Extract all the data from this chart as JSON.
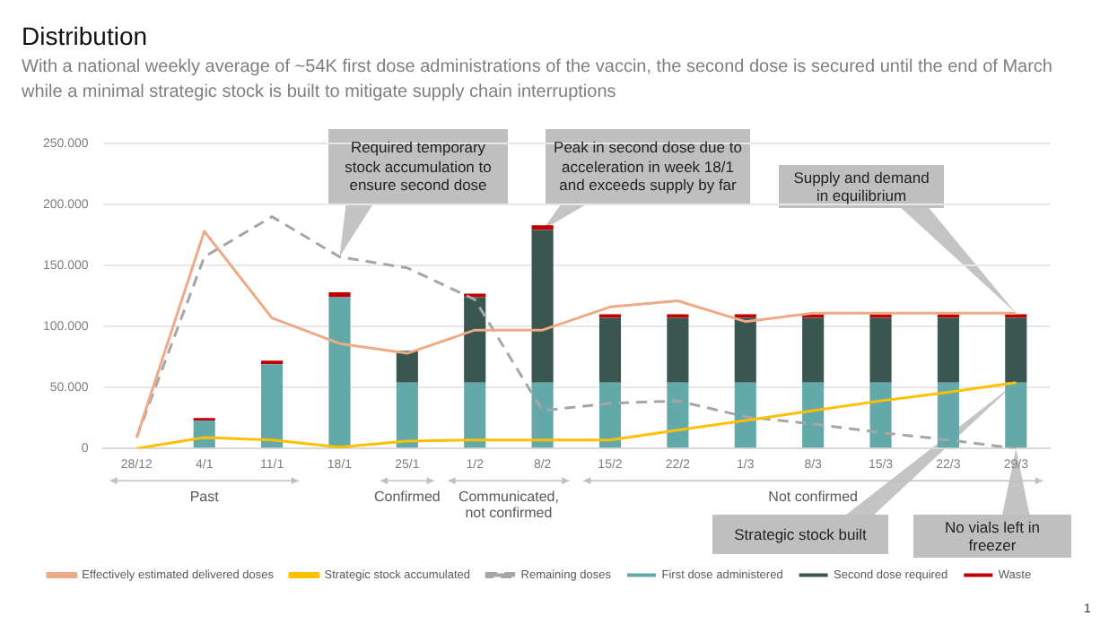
{
  "chart_data": {
    "type": "bar",
    "stacked": true,
    "title": "Distribution",
    "subtitle": "With a national weekly average of ~54K first dose administrations of the vaccin, the second dose is secured until the end of March while a minimal strategic stock is built to mitigate supply chain interruptions",
    "categories": [
      "28/12",
      "4/1",
      "11/1",
      "18/1",
      "25/1",
      "1/2",
      "8/2",
      "15/2",
      "22/2",
      "1/3",
      "8/3",
      "15/3",
      "22/3",
      "29/3"
    ],
    "ylim": [
      0,
      250000
    ],
    "yticks": [
      {
        "value": 0,
        "label": "0"
      },
      {
        "value": 50000,
        "label": "50.000"
      },
      {
        "value": 100000,
        "label": "100.000"
      },
      {
        "value": 150000,
        "label": "150.000"
      },
      {
        "value": 200000,
        "label": "200.000"
      },
      {
        "value": 250000,
        "label": "250.000"
      }
    ],
    "grid": "y",
    "legend": "bottom",
    "marker": "none",
    "series": [
      {
        "name": "First dose administered",
        "color": "#63a9a9",
        "values": [
          0,
          23000,
          69000,
          124000,
          54000,
          54000,
          54000,
          54000,
          54000,
          54000,
          54000,
          54000,
          54000,
          54000
        ]
      },
      {
        "name": "Second dose required",
        "color": "#395650",
        "values": [
          0,
          0,
          0,
          0,
          26000,
          70000,
          125000,
          53000,
          53000,
          53000,
          53000,
          53000,
          53000,
          53000
        ]
      },
      {
        "name": "Waste",
        "color": "#c00000",
        "values": [
          0,
          2000,
          3000,
          4000,
          0,
          3000,
          4000,
          3000,
          3000,
          3000,
          3000,
          3000,
          3000,
          3000
        ]
      },
      {
        "name": "Effectively estimated delivered doses",
        "type": "line",
        "color": "#eea986",
        "line_style": "solid",
        "values": [
          9000,
          178000,
          107000,
          86000,
          78000,
          97000,
          97000,
          116000,
          121000,
          104000,
          111000,
          111000,
          111000,
          111000
        ]
      },
      {
        "name": "Strategic stock accumulated",
        "type": "line",
        "color": "#ffc000",
        "line_style": "solid",
        "values": [
          0,
          9000,
          7000,
          1000,
          6000,
          7000,
          7000,
          7000,
          15000,
          23000,
          31000,
          39000,
          46000,
          54000
        ]
      },
      {
        "name": "Remaining doses",
        "type": "line",
        "color": "#a6a6a6",
        "line_style": "dashed",
        "values": [
          9000,
          157000,
          190000,
          157000,
          148000,
          122000,
          31000,
          37000,
          39000,
          26000,
          20000,
          13000,
          7000,
          0
        ]
      }
    ],
    "annotations": [
      "Past",
      "Confirmed",
      "Communicated, not confirmed",
      "Not confirmed",
      "1",
      "Required temporary stock accumulation to ensure second dose",
      {
        "text": "Peak in second dose due to acceleration in week 18/1 and exceeds supply by far",
        "x": "8/2",
        "y": 179000
      },
      "Supply and demand in equilibrium",
      "Strategic stock built",
      {
        "text": "No vials left in freezer",
        "x": "29/3",
        "y": 0
      }
    ]
  }
}
